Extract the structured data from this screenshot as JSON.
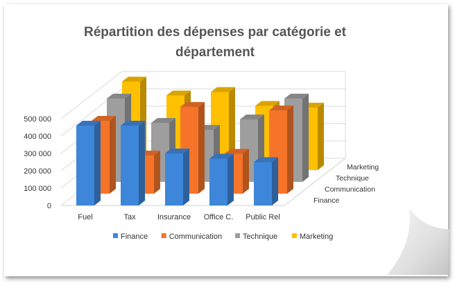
{
  "chart_data": {
    "type": "bar",
    "variant": "3d-column",
    "title_line1": "Répartition des dépenses par catégorie et",
    "title_line2": "département",
    "categories": [
      "Fuel",
      "Tax",
      "Insurance",
      "Office C.",
      "Public Rel"
    ],
    "y_ticks": [
      "0",
      "100 000",
      "200 000",
      "300 000",
      "400 000",
      "500 000"
    ],
    "ylim": [
      0,
      500000
    ],
    "series": [
      {
        "name": "Finance",
        "color": "#3E86D9",
        "values": [
          460000,
          460000,
          300000,
          270000,
          250000
        ]
      },
      {
        "name": "Communication",
        "color": "#F5742A",
        "values": [
          420000,
          220000,
          500000,
          230000,
          480000
        ]
      },
      {
        "name": "Technique",
        "color": "#9E9E9E",
        "values": [
          480000,
          340000,
          300000,
          360000,
          480000
        ]
      },
      {
        "name": "Marketing",
        "color": "#FFC000",
        "values": [
          510000,
          430000,
          450000,
          370000,
          360000
        ]
      }
    ],
    "depth_labels": [
      "Marketing",
      "Technique",
      "Communication",
      "Finance"
    ],
    "legend_position": "bottom",
    "grid": true
  }
}
